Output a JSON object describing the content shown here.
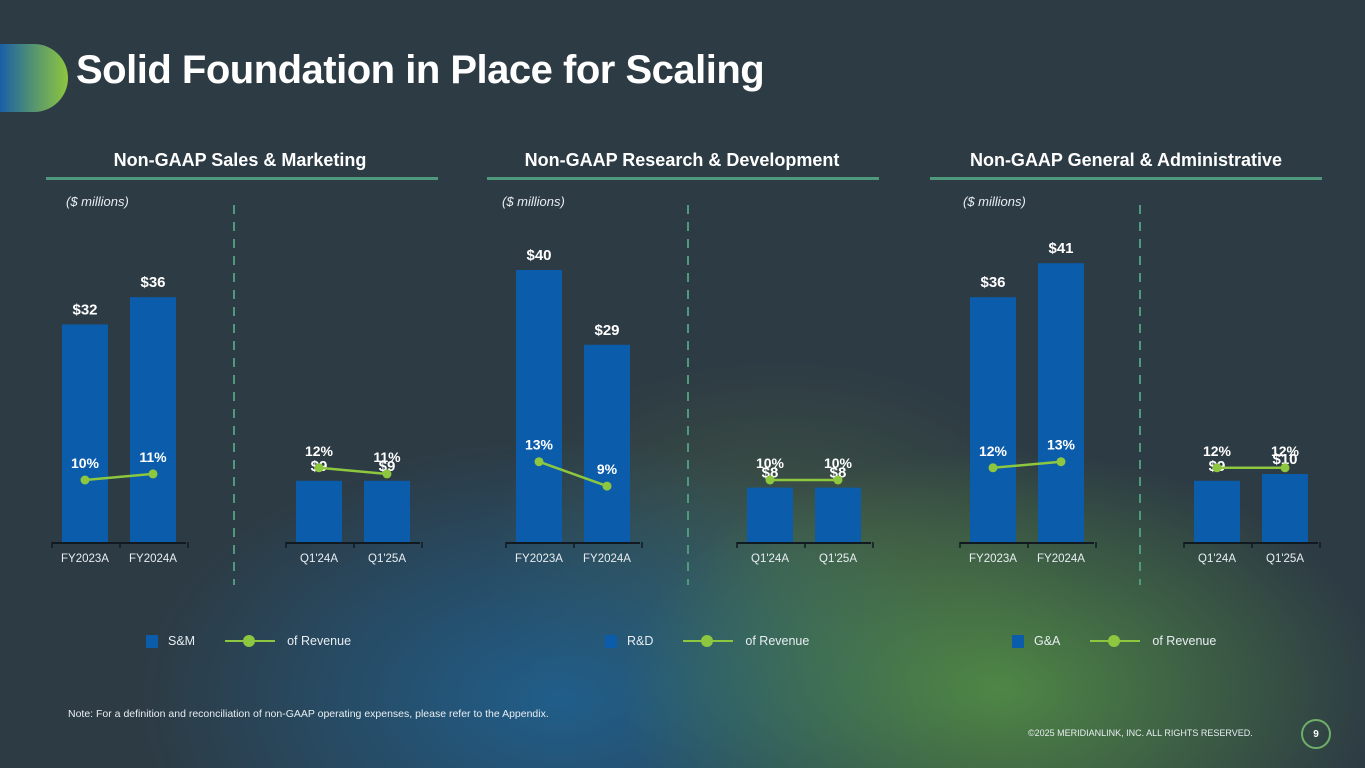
{
  "title": "Solid Foundation in Place for Scaling",
  "colors": {
    "bar": "#0b5cab",
    "line": "#8dc63f",
    "divider": "#4f9a7c"
  },
  "chart_data": [
    {
      "type": "bar",
      "title": "Non-GAAP Sales & Marketing",
      "units_label": "($ millions)",
      "groups": [
        {
          "categories": [
            "FY2023A",
            "FY2024A"
          ],
          "values": [
            32,
            36
          ],
          "value_labels": [
            "$32",
            "$36"
          ],
          "pct": [
            10,
            11
          ],
          "pct_labels": [
            "10%",
            "11%"
          ]
        },
        {
          "categories": [
            "Q1'24A",
            "Q1'25A"
          ],
          "values": [
            9,
            9
          ],
          "value_labels": [
            "$9",
            "$9"
          ],
          "pct": [
            12,
            11
          ],
          "pct_labels": [
            "12%",
            "11%"
          ]
        }
      ],
      "legend": {
        "bar": "S&M",
        "line": "of Revenue"
      }
    },
    {
      "type": "bar",
      "title": "Non-GAAP Research & Development",
      "units_label": "($ millions)",
      "groups": [
        {
          "categories": [
            "FY2023A",
            "FY2024A"
          ],
          "values": [
            40,
            29
          ],
          "value_labels": [
            "$40",
            "$29"
          ],
          "pct": [
            13,
            9
          ],
          "pct_labels": [
            "13%",
            "9%"
          ]
        },
        {
          "categories": [
            "Q1'24A",
            "Q1'25A"
          ],
          "values": [
            8,
            8
          ],
          "value_labels": [
            "$8",
            "$8"
          ],
          "pct": [
            10,
            10
          ],
          "pct_labels": [
            "10%",
            "10%"
          ]
        }
      ],
      "legend": {
        "bar": "R&D",
        "line": "of Revenue"
      }
    },
    {
      "type": "bar",
      "title": "Non-GAAP General & Administrative",
      "units_label": "($ millions)",
      "groups": [
        {
          "categories": [
            "FY2023A",
            "FY2024A"
          ],
          "values": [
            36,
            41
          ],
          "value_labels": [
            "$36",
            "$41"
          ],
          "pct": [
            12,
            13
          ],
          "pct_labels": [
            "12%",
            "13%"
          ]
        },
        {
          "categories": [
            "Q1'24A",
            "Q1'25A"
          ],
          "values": [
            9,
            10
          ],
          "value_labels": [
            "$9",
            "$10"
          ],
          "pct": [
            12,
            12
          ],
          "pct_labels": [
            "12%",
            "12%"
          ]
        }
      ],
      "legend": {
        "bar": "G&A",
        "line": "of Revenue"
      }
    }
  ],
  "footer": {
    "note": "Note: For a definition and reconciliation of non-GAAP operating expenses, please refer to the Appendix.",
    "copyright": "©2025 MERIDIANLINK, INC. ALL RIGHTS RESERVED.",
    "page_number": "9"
  }
}
